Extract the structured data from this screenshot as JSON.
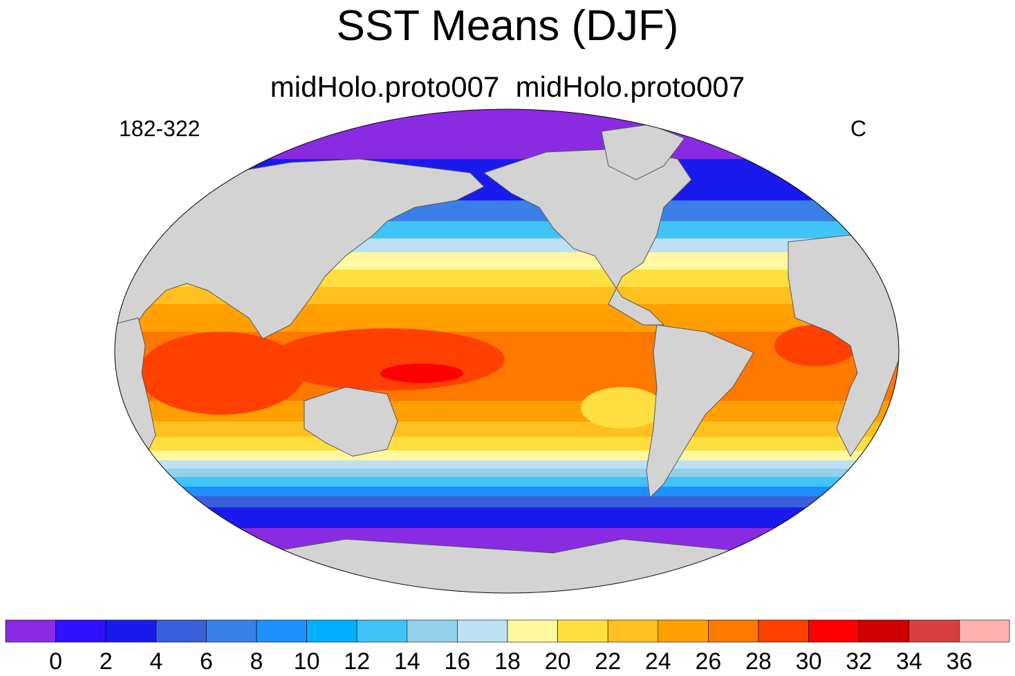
{
  "title": "SST Means (DJF)",
  "subtitle": "midHolo.proto007  midHolo.proto007",
  "left_label": "182-322",
  "right_label": "C",
  "map": {
    "projection": "Robinson",
    "land_color": "#d3d3d3",
    "regions": {
      "arctic": "0",
      "north_pacific": "6",
      "subtropical_north": "20",
      "tropics": "26",
      "warm_pool": "30",
      "southern_midlatitudes": "16",
      "southern_ocean": "2"
    }
  },
  "colorbar": {
    "tick_labels": [
      "0",
      "2",
      "4",
      "6",
      "8",
      "10",
      "12",
      "14",
      "16",
      "18",
      "20",
      "22",
      "24",
      "26",
      "28",
      "30",
      "32",
      "34",
      "36"
    ],
    "colors": [
      "#8a2be2",
      "#3010ff",
      "#1a1aee",
      "#3a5fdc",
      "#3a80e8",
      "#1e90ff",
      "#00b0ff",
      "#40c4f8",
      "#94d0ec",
      "#bde0f4",
      "#fff8a0",
      "#ffe040",
      "#ffc020",
      "#ffa000",
      "#ff7800",
      "#ff4000",
      "#ff0000",
      "#d00000",
      "#d84040",
      "#ffb0b0"
    ]
  }
}
